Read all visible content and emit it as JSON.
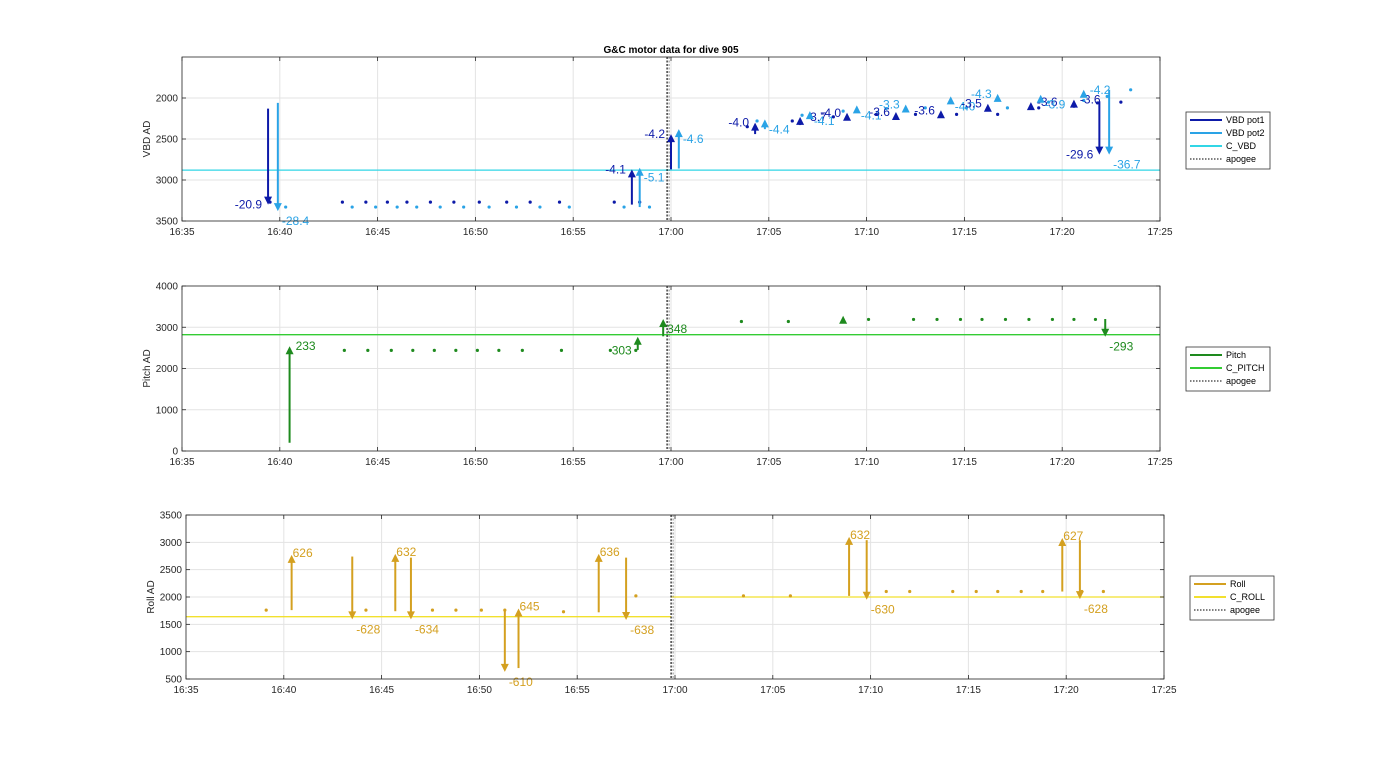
{
  "title": "G&C motor data for dive 905",
  "x_ticks": [
    "16:35",
    "16:40",
    "16:45",
    "16:50",
    "16:55",
    "17:00",
    "17:05",
    "17:10",
    "17:15",
    "17:20",
    "17:25"
  ],
  "x_range": [
    0,
    50
  ],
  "apogee_x": 24.8,
  "colors": {
    "vbd1": "#0d1aa8",
    "vbd2": "#2aa3e6",
    "cvbd": "#31d6e6",
    "pitch": "#1e8a1e",
    "cpitch": "#33cc33",
    "roll": "#d4a020",
    "croll": "#f2e02e",
    "apogee": "#555555"
  },
  "chart_data": [
    {
      "type": "scatter",
      "name": "vbd",
      "ylabel": "VBD AD",
      "ylim": [
        3500,
        1500
      ],
      "y_reversed": true,
      "y_ticks": [
        2000,
        2500,
        3000,
        3500
      ],
      "grid": true,
      "legend": [
        {
          "label": "VBD pot1",
          "key": "vbd1",
          "style": "solid"
        },
        {
          "label": "VBD pot2",
          "key": "vbd2",
          "style": "solid"
        },
        {
          "label": "C_VBD",
          "key": "cvbd",
          "style": "solid"
        },
        {
          "label": "apogee",
          "key": "apogee",
          "style": "dotted"
        }
      ],
      "reference_line": {
        "key": "cvbd",
        "y": 2880
      },
      "points": [
        {
          "key": "vbd1",
          "x": [
            4.5,
            8.2,
            9.4,
            10.5,
            11.5,
            12.7,
            13.9,
            15.2,
            16.6,
            17.8,
            19.3,
            22.1,
            23.4,
            28.9,
            31.2,
            33.3,
            35.5,
            37.5,
            39.6,
            41.7,
            43.8,
            45.6,
            46.8,
            48.0
          ],
          "y": [
            3270,
            3270,
            3270,
            3270,
            3270,
            3270,
            3270,
            3270,
            3270,
            3270,
            3270,
            3270,
            3270,
            2350,
            2280,
            2230,
            2200,
            2200,
            2200,
            2200,
            2120,
            2100,
            2060,
            2050
          ]
        },
        {
          "key": "vbd2",
          "x": [
            5.3,
            8.7,
            9.9,
            11.0,
            12.0,
            13.2,
            14.4,
            15.7,
            17.1,
            18.3,
            19.8,
            22.6,
            23.9,
            29.4,
            31.7,
            33.8,
            36.0,
            38.0,
            40.1,
            42.2,
            44.3,
            46.1,
            47.3,
            48.5
          ],
          "y": [
            3330,
            3330,
            3330,
            3330,
            3330,
            3330,
            3330,
            3330,
            3330,
            3330,
            3330,
            3330,
            3330,
            2280,
            2210,
            2160,
            2130,
            2120,
            2120,
            2120,
            2050,
            2030,
            1980,
            1900
          ]
        }
      ],
      "arrows": [
        {
          "key": "vbd1",
          "x": 4.4,
          "y_from": 2130,
          "y_to": 3300,
          "label": "-20.9",
          "label_side": "left"
        },
        {
          "key": "vbd2",
          "x": 4.9,
          "y_from": 2060,
          "y_to": 3380,
          "label": "-28.4",
          "label_side": "right-below"
        },
        {
          "key": "vbd1",
          "x": 23.0,
          "y_from": 3300,
          "y_to": 2870,
          "label": "-4.1",
          "label_side": "left"
        },
        {
          "key": "vbd2",
          "x": 23.4,
          "y_from": 3330,
          "y_to": 2850,
          "label": "-5.1",
          "label_side": "right-below"
        },
        {
          "key": "vbd1",
          "x": 25.0,
          "y_from": 2870,
          "y_to": 2440,
          "label": "-4.2",
          "label_side": "left"
        },
        {
          "key": "vbd2",
          "x": 25.4,
          "y_from": 2860,
          "y_to": 2380,
          "label": "-4.6",
          "label_side": "right-below"
        },
        {
          "key": "vbd1",
          "x": 29.3,
          "y_from": 2440,
          "y_to": 2300,
          "label": "-4.0",
          "label_side": "left"
        },
        {
          "key": "vbd2",
          "x": 29.8,
          "y_from": 2380,
          "y_to": 2260,
          "label": "-4.4",
          "label_side": "right-below"
        },
        {
          "key": "vbd1",
          "x": 31.6,
          "y_from": 2330,
          "y_to": 2230,
          "label": "-3.7",
          "label_side": "right"
        },
        {
          "key": "vbd2",
          "x": 32.1,
          "y_from": 2250,
          "y_to": 2160,
          "label": "-4.1",
          "label_side": "right-below"
        },
        {
          "key": "vbd1",
          "x": 34.0,
          "y_from": 2260,
          "y_to": 2180,
          "label": "-4.0",
          "label_side": "left"
        },
        {
          "key": "vbd2",
          "x": 34.5,
          "y_from": 2170,
          "y_to": 2090,
          "label": "-4.1",
          "label_side": "right-below"
        },
        {
          "key": "vbd1",
          "x": 36.5,
          "y_from": 2240,
          "y_to": 2170,
          "label": "-3.6",
          "label_side": "left"
        },
        {
          "key": "vbd2",
          "x": 37.0,
          "y_from": 2150,
          "y_to": 2080,
          "label": "-3.3",
          "label_side": "left"
        },
        {
          "key": "vbd1",
          "x": 38.8,
          "y_from": 2230,
          "y_to": 2150,
          "label": "-3.6",
          "label_side": "left"
        },
        {
          "key": "vbd2",
          "x": 39.3,
          "y_from": 2070,
          "y_to": 1980,
          "label": "-4.0",
          "label_side": "right-below"
        },
        {
          "key": "vbd1",
          "x": 41.2,
          "y_from": 2150,
          "y_to": 2070,
          "label": "-3.5",
          "label_side": "left"
        },
        {
          "key": "vbd2",
          "x": 41.7,
          "y_from": 2030,
          "y_to": 1950,
          "label": "-4.3",
          "label_side": "left"
        },
        {
          "key": "vbd1",
          "x": 43.4,
          "y_from": 2120,
          "y_to": 2050,
          "label": "-3.6",
          "label_side": "right"
        },
        {
          "key": "vbd2",
          "x": 43.9,
          "y_from": 2030,
          "y_to": 1960,
          "label": "-3.9",
          "label_side": "right-below"
        },
        {
          "key": "vbd1",
          "x": 45.6,
          "y_from": 2100,
          "y_to": 2020,
          "label": "-3.6",
          "label_side": "right"
        },
        {
          "key": "vbd2",
          "x": 46.1,
          "y_from": 1980,
          "y_to": 1900,
          "label": "-4.2",
          "label_side": "right"
        },
        {
          "key": "vbd1",
          "x": 46.9,
          "y_from": 2040,
          "y_to": 2690,
          "label": "-29.6",
          "label_side": "left"
        },
        {
          "key": "vbd2",
          "x": 47.4,
          "y_from": 1900,
          "y_to": 2690,
          "label": "-36.7",
          "label_side": "right-below"
        }
      ]
    },
    {
      "type": "scatter",
      "name": "pitch",
      "ylabel": "Pitch AD",
      "ylim": [
        0,
        4000
      ],
      "y_reversed": false,
      "y_ticks": [
        0,
        1000,
        2000,
        3000,
        4000
      ],
      "grid": true,
      "legend": [
        {
          "label": "Pitch",
          "key": "pitch",
          "style": "solid"
        },
        {
          "label": "C_PITCH",
          "key": "cpitch",
          "style": "solid"
        },
        {
          "label": "apogee",
          "key": "apogee",
          "style": "dotted"
        }
      ],
      "reference_line": {
        "key": "cpitch",
        "y": 2820
      },
      "points": [
        {
          "key": "pitch",
          "x": [
            8.3,
            9.5,
            10.7,
            11.8,
            12.9,
            14.0,
            15.1,
            16.2,
            17.4,
            19.4,
            21.9,
            23.2,
            28.6,
            31.0,
            35.1,
            37.4,
            38.6,
            39.8,
            40.9,
            42.1,
            43.3,
            44.5,
            45.6,
            46.7
          ],
          "y": [
            2440,
            2440,
            2440,
            2440,
            2440,
            2440,
            2440,
            2440,
            2440,
            2440,
            2440,
            2440,
            3140,
            3140,
            3190,
            3190,
            3190,
            3190,
            3190,
            3190,
            3190,
            3190,
            3190,
            3190
          ]
        }
      ],
      "arrows": [
        {
          "key": "pitch",
          "x": 5.5,
          "y_from": 200,
          "y_to": 2540,
          "label": "233",
          "label_side": "right"
        },
        {
          "key": "pitch",
          "x": 23.3,
          "y_from": 2450,
          "y_to": 2770,
          "label": "303",
          "label_side": "left-below"
        },
        {
          "key": "pitch",
          "x": 24.6,
          "y_from": 2780,
          "y_to": 3200,
          "label": "348",
          "label_side": "right-below"
        },
        {
          "key": "pitch",
          "x": 33.8,
          "y_from": 3150,
          "y_to": 3280,
          "label": "",
          "label_side": "right"
        },
        {
          "key": "pitch",
          "x": 47.2,
          "y_from": 3200,
          "y_to": 2770,
          "label": "-293",
          "label_side": "right-below"
        }
      ]
    },
    {
      "type": "scatter",
      "name": "roll",
      "ylabel": "Roll AD",
      "ylim": [
        500,
        3500
      ],
      "y_reversed": false,
      "y_ticks": [
        500,
        1000,
        1500,
        2000,
        2500,
        3000,
        3500
      ],
      "grid": true,
      "legend": [
        {
          "label": "Roll",
          "key": "roll",
          "style": "solid"
        },
        {
          "label": "C_ROLL",
          "key": "croll",
          "style": "solid"
        },
        {
          "label": "apogee",
          "key": "apogee",
          "style": "dotted"
        }
      ],
      "reference_line_segments": [
        {
          "key": "croll",
          "x_from": 0,
          "x_to": 24.8,
          "y": 1640
        },
        {
          "key": "croll",
          "x_from": 24.8,
          "x_to": 50,
          "y": 2000
        }
      ],
      "points": [
        {
          "key": "roll",
          "x": [
            4.1,
            9.2,
            12.6,
            13.8,
            15.1,
            16.3,
            19.3,
            23.0,
            28.5,
            30.9,
            35.8,
            37.0,
            39.2,
            40.4,
            41.5,
            42.7,
            43.8,
            45.8,
            46.9
          ],
          "y": [
            1760,
            1760,
            1760,
            1760,
            1760,
            1760,
            1730,
            2020,
            2020,
            2020,
            2100,
            2100,
            2100,
            2100,
            2100,
            2100,
            2100,
            2100,
            2100
          ]
        }
      ],
      "arrows": [
        {
          "key": "roll",
          "x": 5.4,
          "y_from": 1760,
          "y_to": 2770,
          "label": "626",
          "label_side": "right-top"
        },
        {
          "key": "roll",
          "x": 8.5,
          "y_from": 2740,
          "y_to": 1590,
          "label": "-628",
          "label_side": "right-below"
        },
        {
          "key": "roll",
          "x": 10.7,
          "y_from": 1740,
          "y_to": 2790,
          "label": "632",
          "label_side": "right-top"
        },
        {
          "key": "roll",
          "x": 11.5,
          "y_from": 2720,
          "y_to": 1590,
          "label": "-634",
          "label_side": "right-below"
        },
        {
          "key": "roll",
          "x": 16.3,
          "y_from": 1760,
          "y_to": 630,
          "label": "-610",
          "label_side": "right-below"
        },
        {
          "key": "roll",
          "x": 17.0,
          "y_from": 700,
          "y_to": 1790,
          "label": "645",
          "label_side": "right-top"
        },
        {
          "key": "roll",
          "x": 21.1,
          "y_from": 1720,
          "y_to": 2790,
          "label": "636",
          "label_side": "right-top"
        },
        {
          "key": "roll",
          "x": 22.5,
          "y_from": 2720,
          "y_to": 1580,
          "label": "-638",
          "label_side": "right-below"
        },
        {
          "key": "roll",
          "x": 33.9,
          "y_from": 2020,
          "y_to": 3100,
          "label": "632",
          "label_side": "right-top"
        },
        {
          "key": "roll",
          "x": 34.8,
          "y_from": 3040,
          "y_to": 1950,
          "label": "-630",
          "label_side": "right-below"
        },
        {
          "key": "roll",
          "x": 44.8,
          "y_from": 2100,
          "y_to": 3080,
          "label": "627",
          "label_side": "right-top"
        },
        {
          "key": "roll",
          "x": 45.7,
          "y_from": 3040,
          "y_to": 1960,
          "label": "-628",
          "label_side": "right-below"
        }
      ]
    }
  ]
}
